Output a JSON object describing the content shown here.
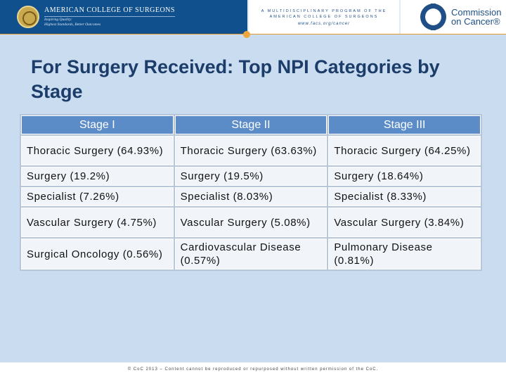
{
  "header": {
    "acs_name": "American College of Surgeons",
    "acs_tagline_1": "Inspiring Quality:",
    "acs_tagline_2": "Highest Standards, Better Outcomes",
    "program_line_1": "A Multidisciplinary Program of the",
    "program_line_2": "American College of Surgeons",
    "program_url": "www.facs.org/cancer",
    "coc_line_1": "Commission",
    "coc_line_2": "on Cancer®"
  },
  "slide": {
    "title": "For Surgery Received: Top NPI Categories by Stage"
  },
  "table": {
    "headers": [
      "Stage I",
      "Stage II",
      "Stage III"
    ],
    "rows": [
      [
        "Thoracic Surgery (64.93%)",
        "Thoracic Surgery (63.63%)",
        "Thoracic Surgery (64.25%)"
      ],
      [
        "Surgery (19.2%)",
        "Surgery (19.5%)",
        "Surgery (18.64%)"
      ],
      [
        "Specialist (7.26%)",
        "Specialist (8.03%)",
        "Specialist (8.33%)"
      ],
      [
        "Vascular Surgery (4.75%)",
        "Vascular Surgery (5.08%)",
        "Vascular Surgery (3.84%)"
      ],
      [
        "Surgical Oncology (0.56%)",
        "Cardiovascular Disease (0.57%)",
        "Pulmonary Disease (0.81%)"
      ]
    ]
  },
  "footer": {
    "text": "© CoC 2013 – Content cannot be reproduced or repurposed without written permission of the CoC."
  },
  "colors": {
    "banner_blue": "#10508c",
    "header_cell": "#5b8cc8",
    "body_cell": "#f1f5fa",
    "accent_orange": "#f0a53a",
    "title_color": "#1c3c6a"
  }
}
